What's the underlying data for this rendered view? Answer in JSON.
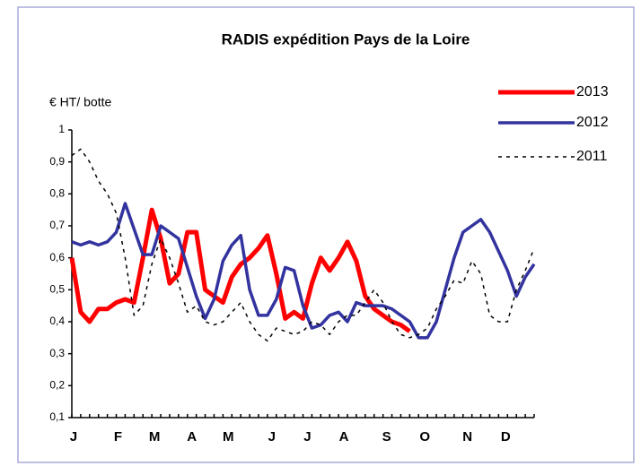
{
  "chart_data": {
    "type": "line",
    "title": "RADIS expédition Pays de la Loire",
    "y_label": "€ HT/ botte",
    "x": [
      0,
      1,
      2,
      3,
      4,
      5,
      6,
      7,
      8,
      9,
      10,
      11,
      12,
      13,
      14,
      15,
      16,
      17,
      18,
      19,
      20,
      21,
      22,
      23,
      24,
      25,
      26,
      27,
      28,
      29,
      30,
      31,
      32,
      33,
      34,
      35,
      36,
      37,
      38,
      39,
      40,
      41,
      42,
      43,
      44,
      45,
      46,
      47,
      48,
      49,
      50,
      51,
      52
    ],
    "xlim": [
      0,
      52
    ],
    "xticks": [
      {
        "value": 0.2,
        "label": "J"
      },
      {
        "value": 5.2,
        "label": "F"
      },
      {
        "value": 9.3,
        "label": "M"
      },
      {
        "value": 13.5,
        "label": "A"
      },
      {
        "value": 17.6,
        "label": "M"
      },
      {
        "value": 22.5,
        "label": "J"
      },
      {
        "value": 26.5,
        "label": "J"
      },
      {
        "value": 30.6,
        "label": "A"
      },
      {
        "value": 35.4,
        "label": "S"
      },
      {
        "value": 39.7,
        "label": "O"
      },
      {
        "value": 44.5,
        "label": "N"
      },
      {
        "value": 48.8,
        "label": "D"
      }
    ],
    "ylim": [
      0.1,
      1
    ],
    "yticks": [
      {
        "value": 0.1,
        "label": "0,1"
      },
      {
        "value": 0.2,
        "label": "0,2"
      },
      {
        "value": 0.3,
        "label": "0,3"
      },
      {
        "value": 0.4,
        "label": "0,4"
      },
      {
        "value": 0.5,
        "label": "0,5"
      },
      {
        "value": 0.6,
        "label": "0,6"
      },
      {
        "value": 0.7,
        "label": "0,7"
      },
      {
        "value": 0.8,
        "label": "0,8"
      },
      {
        "value": 0.9,
        "label": "0,9"
      },
      1
    ],
    "legend": "top-right",
    "series": [
      {
        "name": "2013",
        "color": "#ff0000",
        "width": 5,
        "dash": false,
        "values": [
          0.6,
          0.43,
          0.4,
          0.44,
          0.44,
          0.46,
          0.47,
          0.46,
          0.6,
          0.75,
          0.66,
          0.52,
          0.55,
          0.68,
          0.68,
          0.5,
          0.48,
          0.46,
          0.54,
          0.58,
          0.6,
          0.63,
          0.67,
          0.55,
          0.41,
          0.43,
          0.41,
          0.52,
          0.6,
          0.56,
          0.6,
          0.65,
          0.59,
          0.48,
          0.44,
          0.42,
          0.4,
          0.39,
          0.37,
          null,
          null,
          null,
          null,
          null,
          null,
          null,
          null,
          null,
          null,
          null,
          null,
          null,
          null
        ]
      },
      {
        "name": "2012",
        "color": "#3333a0",
        "width": 3.5,
        "dash": false,
        "values": [
          0.65,
          0.64,
          0.65,
          0.64,
          0.65,
          0.68,
          0.77,
          0.69,
          0.61,
          0.61,
          0.7,
          0.68,
          0.66,
          0.57,
          0.48,
          0.41,
          0.47,
          0.59,
          0.64,
          0.67,
          0.5,
          0.42,
          0.42,
          0.47,
          0.57,
          0.56,
          0.45,
          0.38,
          0.39,
          0.42,
          0.43,
          0.4,
          0.46,
          0.45,
          0.45,
          0.45,
          0.44,
          0.42,
          0.4,
          0.35,
          0.35,
          0.4,
          0.5,
          0.6,
          0.68,
          0.7,
          0.72,
          0.68,
          0.62,
          0.56,
          0.48,
          0.54,
          0.58
        ]
      },
      {
        "name": "2011",
        "color": "#000000",
        "width": 1.5,
        "dash": true,
        "values": [
          0.92,
          0.94,
          0.9,
          0.84,
          0.8,
          0.74,
          0.6,
          0.42,
          0.45,
          0.58,
          0.66,
          0.6,
          0.52,
          0.43,
          0.45,
          0.4,
          0.39,
          0.4,
          0.43,
          0.46,
          0.4,
          0.36,
          0.34,
          0.38,
          0.37,
          0.36,
          0.37,
          0.4,
          0.39,
          0.36,
          0.4,
          0.42,
          0.42,
          0.46,
          0.5,
          0.46,
          0.4,
          0.36,
          0.35,
          0.36,
          0.38,
          0.44,
          0.48,
          0.53,
          0.52,
          0.59,
          0.55,
          0.42,
          0.4,
          0.4,
          0.5,
          0.56,
          0.63
        ]
      }
    ]
  }
}
